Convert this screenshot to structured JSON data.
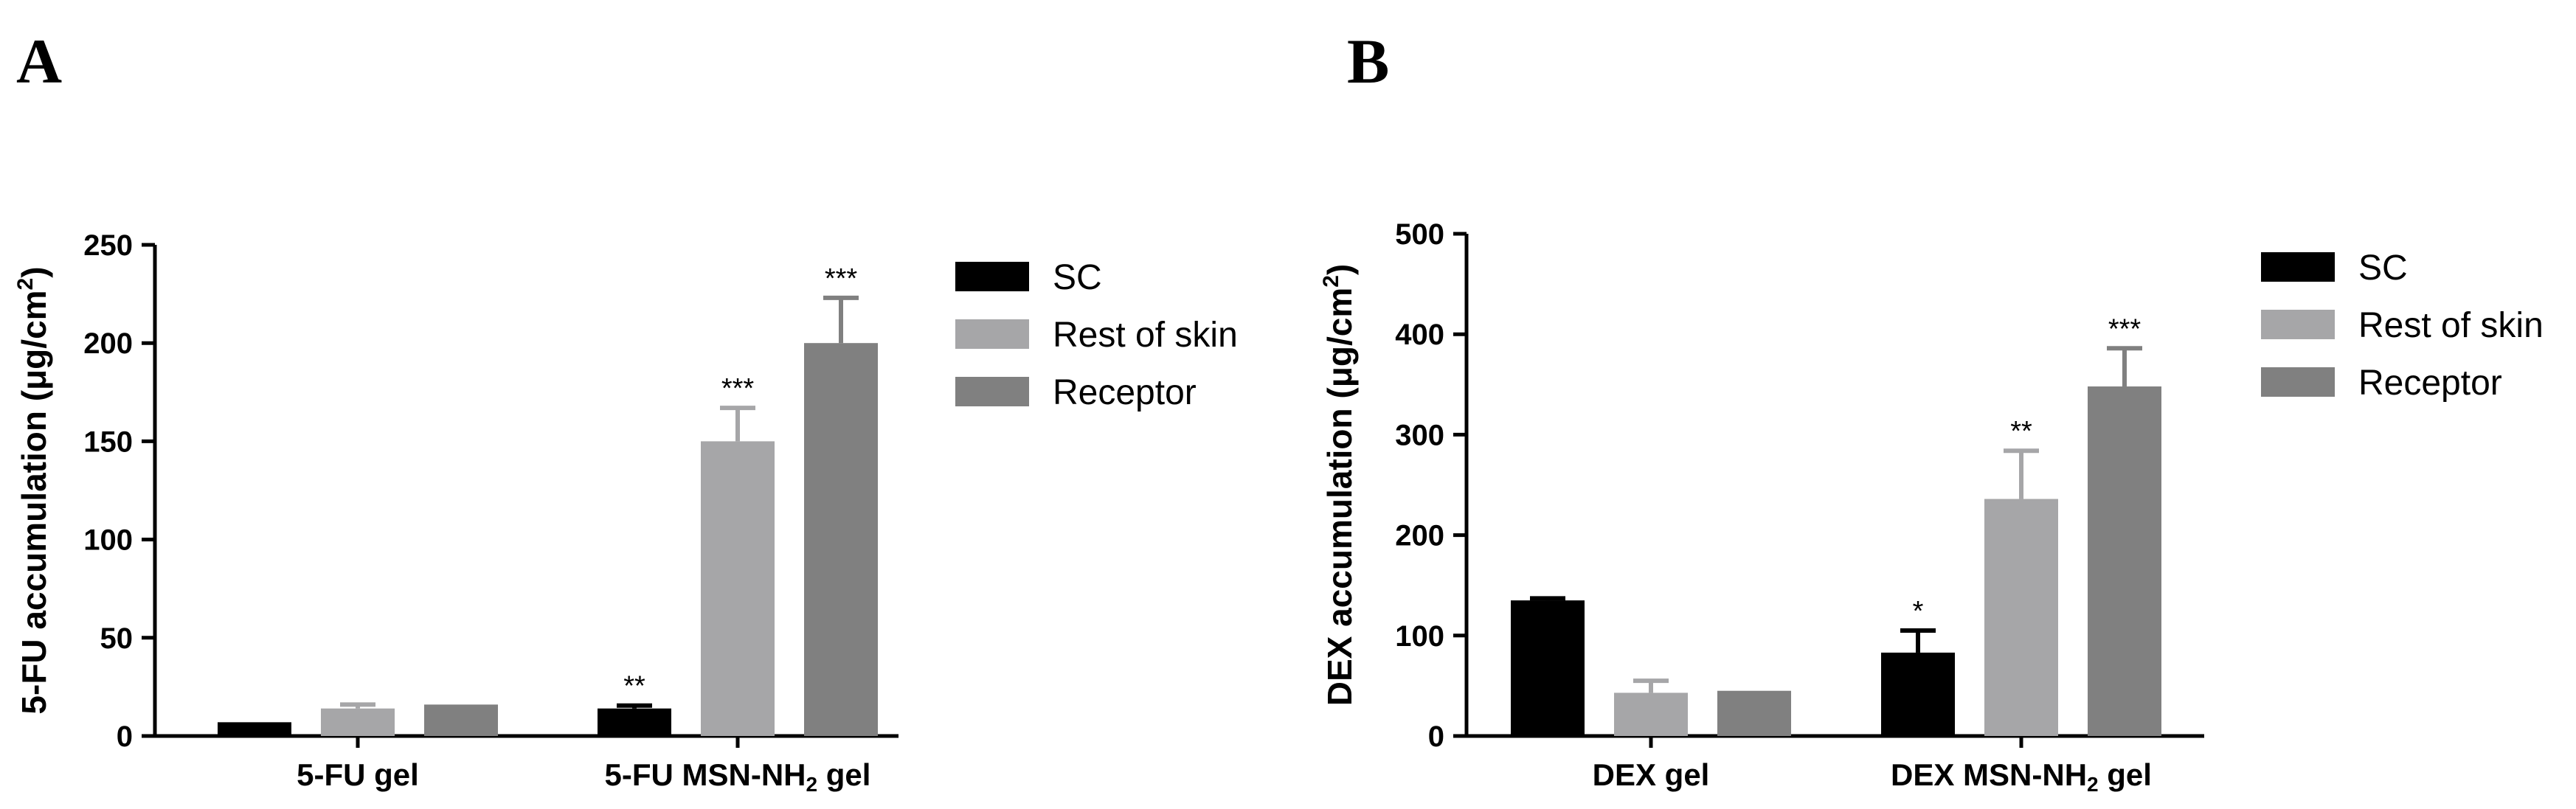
{
  "chart_data": [
    {
      "type": "bar",
      "panel": "A",
      "ylabel_main": "5-FU accumulation (μg/cm",
      "ylabel_sup": "2",
      "ylabel_end": ")",
      "ylim": [
        0,
        250
      ],
      "yticks": [
        0,
        50,
        100,
        150,
        200,
        250
      ],
      "grid": false,
      "legend_position": "right",
      "categories": [
        {
          "main": "5-FU gel",
          "sub": "",
          "tail": ""
        },
        {
          "main": "5-FU MSN-NH",
          "sub": "2",
          "tail": " gel"
        }
      ],
      "series": [
        {
          "name": "SC",
          "color": "#000000",
          "values": [
            7,
            14
          ],
          "errors": [
            0,
            1.5
          ],
          "sig": [
            "",
            "**"
          ]
        },
        {
          "name": "Rest of skin",
          "color": "#a6a6a8",
          "values": [
            14,
            150
          ],
          "errors": [
            2,
            17
          ],
          "sig": [
            "",
            "***"
          ]
        },
        {
          "name": "Receptor",
          "color": "#808080",
          "values": [
            16,
            200
          ],
          "errors": [
            0,
            23
          ],
          "sig": [
            "",
            "***"
          ]
        }
      ]
    },
    {
      "type": "bar",
      "panel": "B",
      "ylabel_main": "DEX accumulation (μg/cm",
      "ylabel_sup": "2",
      "ylabel_end": ")",
      "ylim": [
        0,
        500
      ],
      "yticks": [
        0,
        100,
        200,
        300,
        400,
        500
      ],
      "grid": false,
      "legend_position": "right",
      "categories": [
        {
          "main": "DEX gel",
          "sub": "",
          "tail": ""
        },
        {
          "main": "DEX MSN-NH",
          "sub": "2",
          "tail": " gel"
        }
      ],
      "series": [
        {
          "name": "SC",
          "color": "#000000",
          "values": [
            135,
            83
          ],
          "errors": [
            2,
            22
          ],
          "sig": [
            "",
            "*"
          ]
        },
        {
          "name": "Rest of skin",
          "color": "#a6a6a8",
          "values": [
            43,
            236
          ],
          "errors": [
            12,
            48
          ],
          "sig": [
            "",
            "**"
          ]
        },
        {
          "name": "Receptor",
          "color": "#808080",
          "values": [
            45,
            348
          ],
          "errors": [
            0,
            38
          ],
          "sig": [
            "",
            "***"
          ]
        }
      ]
    }
  ]
}
